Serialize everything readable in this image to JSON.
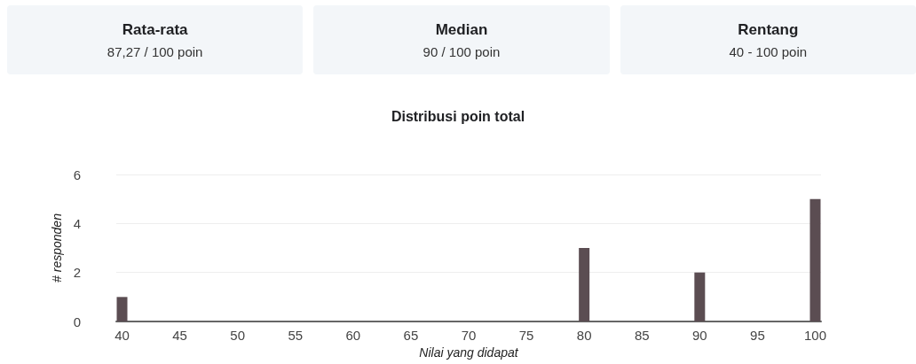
{
  "chart_data": {
    "type": "bar",
    "title": "Distribusi poin total",
    "annotations": [
      "Rata-rata",
      "87,27 / 100 poin",
      "Median",
      "90 / 100 poin",
      "Rentang",
      "40 - 100 poin"
    ],
    "x": [
      40,
      80,
      90,
      100
    ],
    "values": [
      1,
      3,
      2,
      5
    ],
    "color": "#5b4d52",
    "xlabel": "Nilai yang didapat",
    "ylabel": "# responden",
    "xlim": [
      39.5,
      100.5
    ],
    "xticks": [
      40,
      45,
      50,
      55,
      60,
      65,
      70,
      75,
      80,
      85,
      90,
      95,
      100
    ],
    "ylim": [
      0,
      6
    ],
    "yticks": [
      0,
      2,
      4,
      6
    ],
    "grid": "y"
  }
}
